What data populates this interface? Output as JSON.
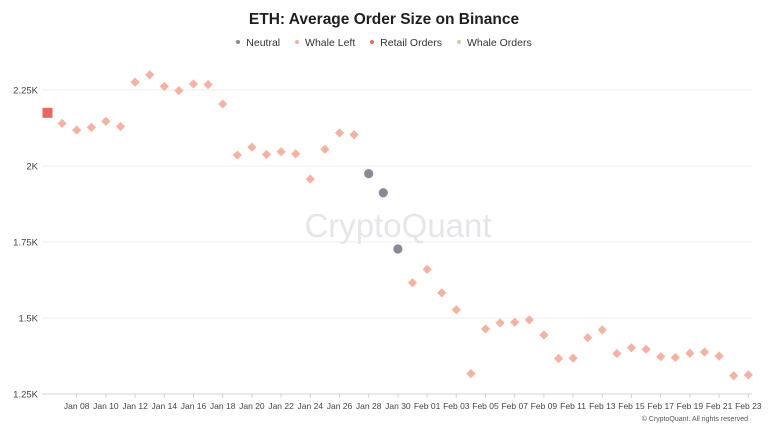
{
  "title": "ETH: Average Order Size on Binance",
  "legend": [
    {
      "label": "Neutral",
      "color": "#8a8a96"
    },
    {
      "label": "Whale Left",
      "color": "#f2b2a4"
    },
    {
      "label": "Retail Orders",
      "color": "#e8685f"
    },
    {
      "label": "Whale Orders",
      "color": "#d7c9a0"
    }
  ],
  "watermark": "CryptoQuant",
  "footer": "© CryptoQuant. All rights reserved",
  "chart_data": {
    "type": "scatter",
    "title": "ETH: Average Order Size on Binance",
    "x_ticks": [
      "Jan 08",
      "Jan 10",
      "Jan 12",
      "Jan 14",
      "Jan 16",
      "Jan 18",
      "Jan 20",
      "Jan 22",
      "Jan 24",
      "Jan 26",
      "Jan 28",
      "Jan 30",
      "Feb 01",
      "Feb 03",
      "Feb 05",
      "Feb 07",
      "Feb 09",
      "Feb 11",
      "Feb 13",
      "Feb 15",
      "Feb 17",
      "Feb 19",
      "Feb 21",
      "Feb 23"
    ],
    "y_ticks": [
      "1.25K",
      "1.5K",
      "1.75K",
      "2K",
      "2.25K"
    ],
    "ylim": [
      1250,
      2350
    ],
    "grid": true,
    "legend_position": "top-center",
    "series": [
      {
        "name": "Whale Left",
        "color": "#f2b2a4",
        "marker": "diamond",
        "points": [
          [
            "2024-01-07",
            2140
          ],
          [
            "2024-01-08",
            2118
          ],
          [
            "2024-01-09",
            2127
          ],
          [
            "2024-01-10",
            2147
          ],
          [
            "2024-01-11",
            2130
          ],
          [
            "2024-01-12",
            2276
          ],
          [
            "2024-01-13",
            2300
          ],
          [
            "2024-01-14",
            2262
          ],
          [
            "2024-01-15",
            2248
          ],
          [
            "2024-01-16",
            2270
          ],
          [
            "2024-01-17",
            2268
          ],
          [
            "2024-01-18",
            2204
          ],
          [
            "2024-01-19",
            2036
          ],
          [
            "2024-01-20",
            2062
          ],
          [
            "2024-01-21",
            2038
          ],
          [
            "2024-01-22",
            2047
          ],
          [
            "2024-01-23",
            2040
          ],
          [
            "2024-01-24",
            1957
          ],
          [
            "2024-01-25",
            2055
          ],
          [
            "2024-01-26",
            2109
          ],
          [
            "2024-01-27",
            2103
          ],
          [
            "2024-01-31",
            1616
          ],
          [
            "2024-02-01",
            1660
          ],
          [
            "2024-02-02",
            1583
          ],
          [
            "2024-02-03",
            1527
          ],
          [
            "2024-02-04",
            1317
          ],
          [
            "2024-02-05",
            1464
          ],
          [
            "2024-02-06",
            1484
          ],
          [
            "2024-02-07",
            1486
          ],
          [
            "2024-02-08",
            1494
          ],
          [
            "2024-02-09",
            1444
          ],
          [
            "2024-02-10",
            1367
          ],
          [
            "2024-02-11",
            1368
          ],
          [
            "2024-02-12",
            1435
          ],
          [
            "2024-02-13",
            1461
          ],
          [
            "2024-02-14",
            1383
          ],
          [
            "2024-02-15",
            1402
          ],
          [
            "2024-02-16",
            1397
          ],
          [
            "2024-02-17",
            1373
          ],
          [
            "2024-02-18",
            1370
          ],
          [
            "2024-02-19",
            1384
          ],
          [
            "2024-02-20",
            1388
          ],
          [
            "2024-02-21",
            1375
          ],
          [
            "2024-02-22",
            1310
          ],
          [
            "2024-02-23",
            1313
          ]
        ]
      },
      {
        "name": "Neutral",
        "color": "#8a8a96",
        "marker": "circle",
        "points": [
          [
            "2024-01-28",
            1975
          ],
          [
            "2024-01-29",
            1912
          ],
          [
            "2024-01-30",
            1727
          ]
        ]
      },
      {
        "name": "Retail Orders",
        "color": "#e8685f",
        "marker": "square",
        "points": [
          [
            "2024-01-06",
            2175
          ]
        ]
      },
      {
        "name": "Whale Orders",
        "color": "#d7c9a0",
        "marker": "diamond",
        "points": []
      }
    ]
  }
}
